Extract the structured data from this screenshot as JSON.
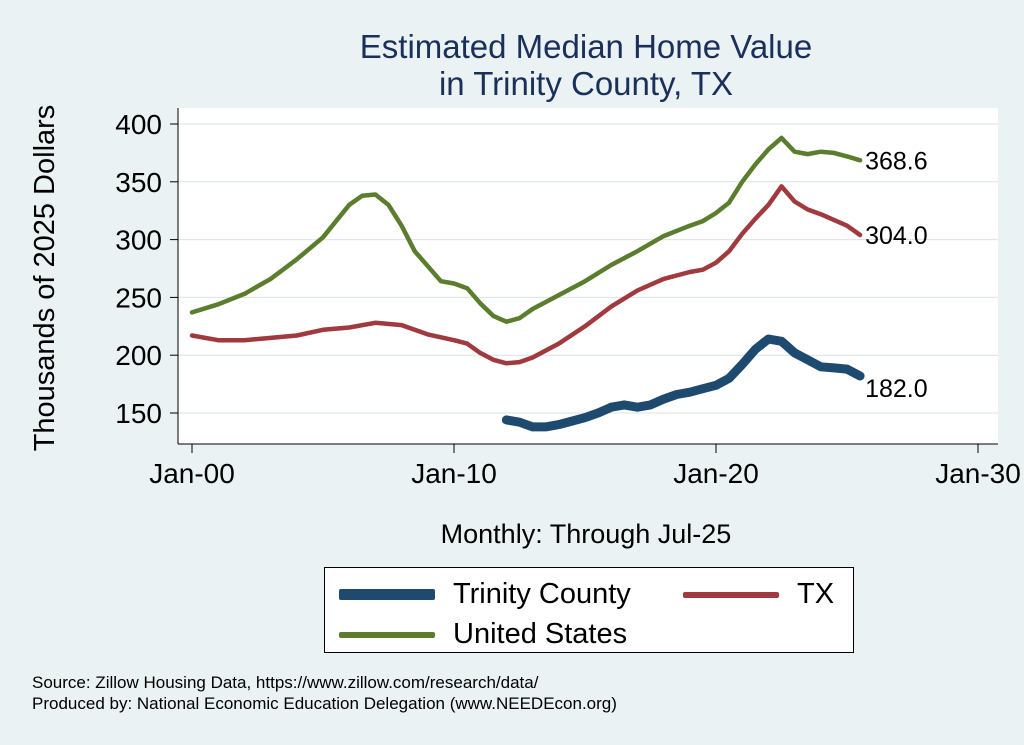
{
  "chart_data": {
    "type": "line",
    "title": [
      "Estimated Median Home Value",
      "in Trinity County, TX"
    ],
    "xlabel": "Monthly: Through Jul-25",
    "ylabel": "Thousands of 2025 Dollars",
    "xlim": [
      2000,
      2030
    ],
    "ylim": [
      135,
      410
    ],
    "xticks": [
      {
        "value": 2000,
        "label": "Jan-00"
      },
      {
        "value": 2010,
        "label": "Jan-10"
      },
      {
        "value": 2020,
        "label": "Jan-20"
      },
      {
        "value": 2030,
        "label": "Jan-30"
      }
    ],
    "yticks": [
      150,
      200,
      250,
      300,
      350,
      400
    ],
    "grid": true,
    "series": [
      {
        "name": "United States",
        "color": "#5a7d2e",
        "end_label": "368.6",
        "points": [
          [
            2000.0,
            237
          ],
          [
            2001.0,
            244
          ],
          [
            2002.0,
            253
          ],
          [
            2003.0,
            266
          ],
          [
            2004.0,
            283
          ],
          [
            2005.0,
            302
          ],
          [
            2005.5,
            316
          ],
          [
            2006.0,
            330
          ],
          [
            2006.5,
            338
          ],
          [
            2007.0,
            339
          ],
          [
            2007.5,
            330
          ],
          [
            2008.0,
            312
          ],
          [
            2008.5,
            290
          ],
          [
            2009.0,
            277
          ],
          [
            2009.5,
            264
          ],
          [
            2010.0,
            262
          ],
          [
            2010.5,
            258
          ],
          [
            2011.0,
            245
          ],
          [
            2011.5,
            234
          ],
          [
            2012.0,
            229
          ],
          [
            2012.5,
            232
          ],
          [
            2013.0,
            240
          ],
          [
            2014.0,
            252
          ],
          [
            2015.0,
            264
          ],
          [
            2016.0,
            278
          ],
          [
            2017.0,
            290
          ],
          [
            2018.0,
            303
          ],
          [
            2019.0,
            312
          ],
          [
            2019.5,
            316
          ],
          [
            2020.0,
            323
          ],
          [
            2020.5,
            332
          ],
          [
            2021.0,
            350
          ],
          [
            2021.5,
            365
          ],
          [
            2022.0,
            378
          ],
          [
            2022.5,
            388
          ],
          [
            2023.0,
            376
          ],
          [
            2023.5,
            374
          ],
          [
            2024.0,
            376
          ],
          [
            2024.5,
            375
          ],
          [
            2025.0,
            372
          ],
          [
            2025.5,
            368.6
          ]
        ]
      },
      {
        "name": "TX",
        "color": "#a03a3e",
        "end_label": "304.0",
        "points": [
          [
            2000.0,
            217
          ],
          [
            2001.0,
            213
          ],
          [
            2002.0,
            213
          ],
          [
            2003.0,
            215
          ],
          [
            2004.0,
            217
          ],
          [
            2005.0,
            222
          ],
          [
            2006.0,
            224
          ],
          [
            2007.0,
            228
          ],
          [
            2008.0,
            226
          ],
          [
            2009.0,
            218
          ],
          [
            2010.0,
            213
          ],
          [
            2010.5,
            210
          ],
          [
            2011.0,
            202
          ],
          [
            2011.5,
            196
          ],
          [
            2012.0,
            193
          ],
          [
            2012.5,
            194
          ],
          [
            2013.0,
            198
          ],
          [
            2014.0,
            210
          ],
          [
            2015.0,
            225
          ],
          [
            2016.0,
            242
          ],
          [
            2017.0,
            256
          ],
          [
            2018.0,
            266
          ],
          [
            2019.0,
            272
          ],
          [
            2019.5,
            274
          ],
          [
            2020.0,
            280
          ],
          [
            2020.5,
            290
          ],
          [
            2021.0,
            305
          ],
          [
            2021.5,
            318
          ],
          [
            2022.0,
            330
          ],
          [
            2022.5,
            346
          ],
          [
            2023.0,
            333
          ],
          [
            2023.5,
            326
          ],
          [
            2024.0,
            322
          ],
          [
            2024.5,
            317
          ],
          [
            2025.0,
            312
          ],
          [
            2025.5,
            304
          ]
        ]
      },
      {
        "name": "Trinity County",
        "color": "#1e4a70",
        "end_label": "182.0",
        "points": [
          [
            2012.0,
            144
          ],
          [
            2012.5,
            142
          ],
          [
            2013.0,
            138
          ],
          [
            2013.5,
            138
          ],
          [
            2014.0,
            140
          ],
          [
            2014.5,
            143
          ],
          [
            2015.0,
            146
          ],
          [
            2015.5,
            150
          ],
          [
            2016.0,
            155
          ],
          [
            2016.5,
            157
          ],
          [
            2017.0,
            155
          ],
          [
            2017.5,
            157
          ],
          [
            2018.0,
            162
          ],
          [
            2018.5,
            166
          ],
          [
            2019.0,
            168
          ],
          [
            2019.5,
            171
          ],
          [
            2020.0,
            174
          ],
          [
            2020.5,
            180
          ],
          [
            2021.0,
            192
          ],
          [
            2021.5,
            205
          ],
          [
            2022.0,
            214
          ],
          [
            2022.5,
            212
          ],
          [
            2023.0,
            202
          ],
          [
            2023.5,
            196
          ],
          [
            2024.0,
            190
          ],
          [
            2024.5,
            189
          ],
          [
            2025.0,
            188
          ],
          [
            2025.5,
            182
          ]
        ]
      }
    ],
    "legend": {
      "position": "bottom",
      "entries": [
        "Trinity County",
        "TX",
        "United States"
      ]
    }
  },
  "footer": {
    "source": "Source: Zillow Housing Data, https://www.zillow.com/research/data/",
    "produced_by": "Produced by: National Economic Education Delegation (www.NEEDEcon.org)"
  }
}
